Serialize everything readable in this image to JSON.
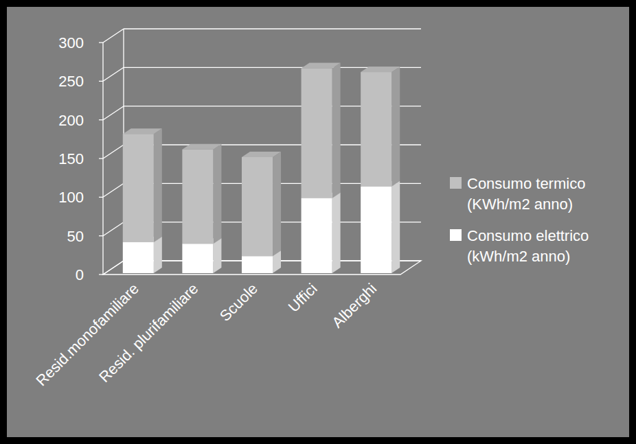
{
  "chart_data": {
    "type": "bar",
    "stacked": true,
    "grid": true,
    "legend": "right",
    "categories": [
      "Resid.monofamiliare",
      "Resid. plurifamiliare",
      "Scuole",
      "Uffici",
      "Alberghi"
    ],
    "series": [
      {
        "name": "Consumo elettrico (kWh/m2 anno)",
        "color": "#ffffff",
        "values": [
          40,
          38,
          22,
          97,
          112
        ]
      },
      {
        "name": "Consumo termico (KWh/m2 anno)",
        "color": "#c0c0c0",
        "values": [
          140,
          122,
          128,
          168,
          148
        ]
      }
    ],
    "ylim": [
      0,
      300
    ],
    "yticks": [
      0,
      50,
      100,
      150,
      200,
      250,
      300
    ]
  }
}
